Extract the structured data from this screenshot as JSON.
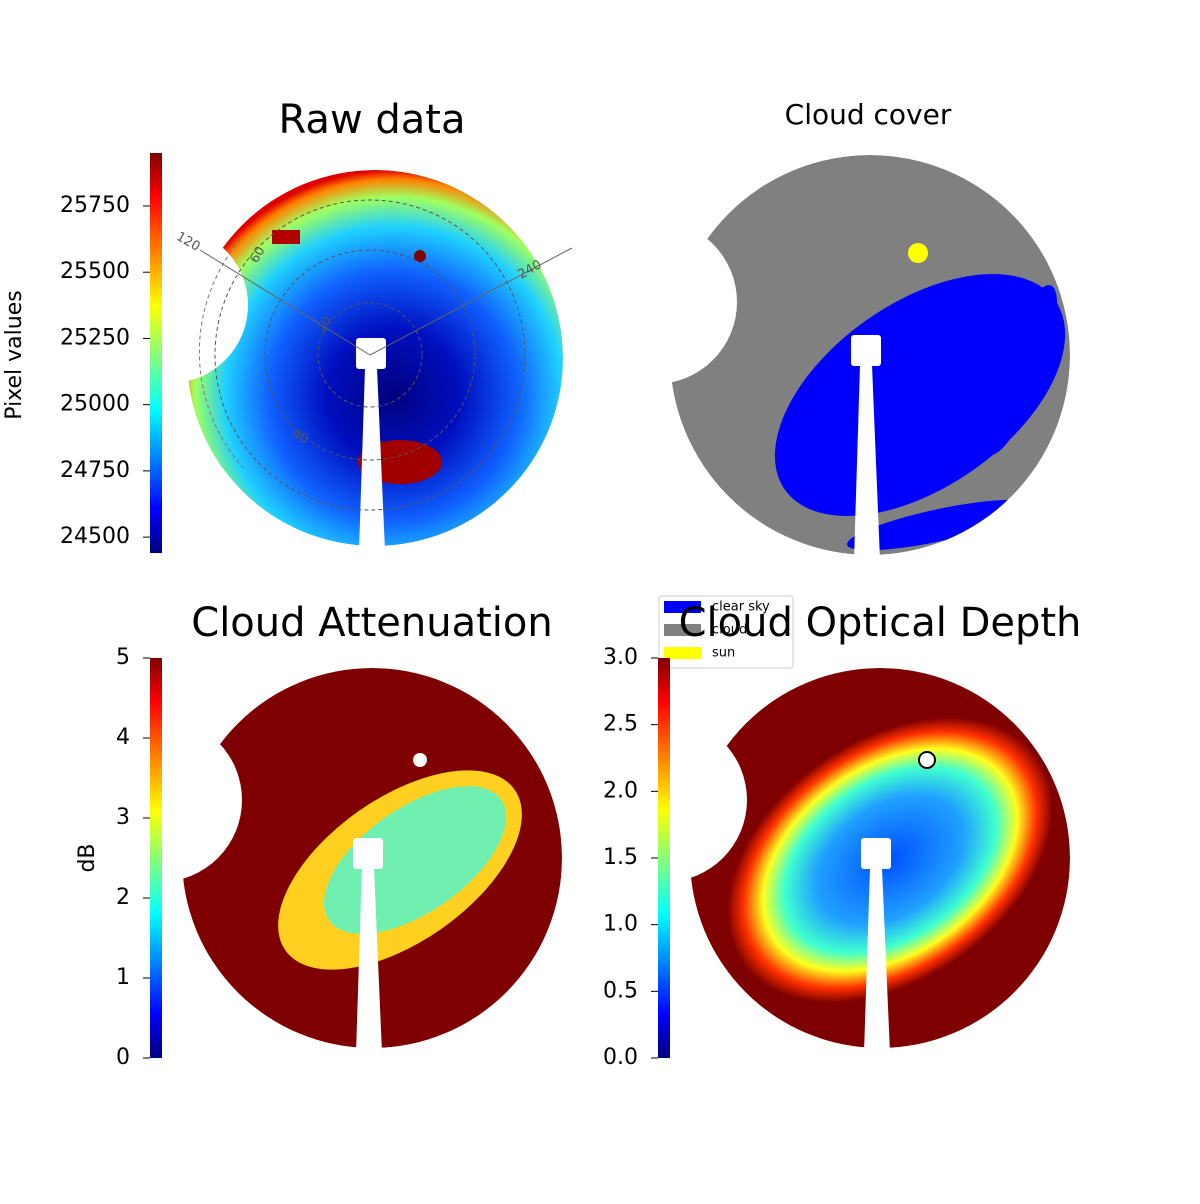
{
  "chart_data": [
    {
      "type": "image",
      "title": "Raw data",
      "colorbar": {
        "label": "Pixel values",
        "cmap": "jet",
        "lim": [
          24440,
          25950
        ],
        "ticks": [
          24500,
          24750,
          25000,
          25250,
          25500,
          25750
        ]
      },
      "annotations": [
        "120",
        "60",
        "20",
        "40",
        "240"
      ]
    },
    {
      "type": "categorical-image",
      "title": "Cloud cover",
      "legend": [
        {
          "name": "clear sky",
          "color": "#0000ff"
        },
        {
          "name": "cloud",
          "color": "#808080"
        },
        {
          "name": "sun",
          "color": "#ffff00"
        }
      ]
    },
    {
      "type": "image",
      "title": "Cloud Attenuation",
      "colorbar": {
        "label": "dB",
        "cmap": "jet",
        "lim": [
          0,
          5
        ],
        "ticks": [
          0,
          1,
          2,
          3,
          4,
          5
        ]
      }
    },
    {
      "type": "image",
      "title": "Cloud Optical Depth",
      "colorbar": {
        "cmap": "jet",
        "lim": [
          0,
          3
        ],
        "ticks": [
          {
            "value": 0,
            "label": "0.0"
          },
          0.5,
          {
            "value": 1,
            "label": "1.0"
          },
          1.5,
          {
            "value": 2,
            "label": "2.0"
          },
          2.5,
          {
            "value": 3,
            "label": "3.0"
          }
        ]
      }
    }
  ]
}
